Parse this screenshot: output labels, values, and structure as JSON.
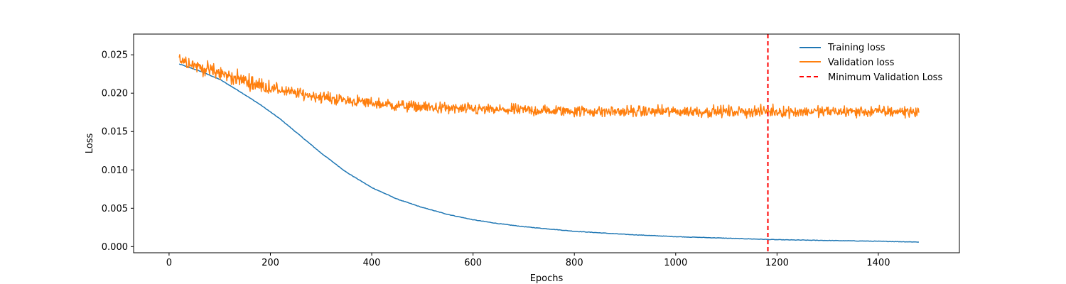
{
  "chart_data": {
    "type": "line",
    "title": "",
    "xlabel": "Epochs",
    "ylabel": "Loss",
    "xlim": [
      -70,
      1560
    ],
    "ylim": [
      -0.0008,
      0.0277
    ],
    "xticks": [
      0,
      200,
      400,
      600,
      800,
      1000,
      1200,
      1400
    ],
    "xtick_labels": [
      "0",
      "200",
      "400",
      "600",
      "800",
      "1000",
      "1200",
      "1400"
    ],
    "yticks": [
      0.0,
      0.005,
      0.01,
      0.015,
      0.02,
      0.025
    ],
    "ytick_labels": [
      "0.000",
      "0.005",
      "0.010",
      "0.015",
      "0.020",
      "0.025"
    ],
    "grid": false,
    "legend_position": "top-right",
    "series": [
      {
        "name": "Training loss",
        "color": "#1f77b4",
        "style": "solid",
        "x": [
          20,
          60,
          100,
          140,
          180,
          220,
          260,
          300,
          350,
          400,
          450,
          500,
          550,
          600,
          650,
          700,
          800,
          900,
          1000,
          1100,
          1200,
          1300,
          1400,
          1480
        ],
        "y": [
          0.0238,
          0.0229,
          0.0218,
          0.0202,
          0.0185,
          0.0166,
          0.0144,
          0.0122,
          0.0097,
          0.0077,
          0.0062,
          0.0051,
          0.0042,
          0.0035,
          0.003,
          0.0026,
          0.002,
          0.0016,
          0.0013,
          0.0011,
          0.0009,
          0.0008,
          0.0007,
          0.0006
        ]
      },
      {
        "name": "Validation loss",
        "color": "#ff7f0e",
        "style": "solid",
        "x": [
          20,
          40,
          60,
          80,
          100,
          120,
          140,
          160,
          180,
          200,
          240,
          280,
          320,
          360,
          400,
          450,
          500,
          550,
          600,
          650,
          700,
          750,
          800,
          850,
          900,
          950,
          1000,
          1050,
          1100,
          1150,
          1200,
          1250,
          1300,
          1350,
          1400,
          1450,
          1480
        ],
        "y": [
          0.0245,
          0.024,
          0.0234,
          0.023,
          0.0226,
          0.0222,
          0.0218,
          0.0214,
          0.021,
          0.0207,
          0.0201,
          0.0197,
          0.0193,
          0.019,
          0.0187,
          0.0184,
          0.0182,
          0.018,
          0.0179,
          0.0178,
          0.0178,
          0.0177,
          0.0177,
          0.0176,
          0.0176,
          0.0176,
          0.0176,
          0.0176,
          0.0176,
          0.0176,
          0.0176,
          0.0176,
          0.0176,
          0.0176,
          0.0176,
          0.0176,
          0.0176
        ],
        "noise_amplitude": 0.0011,
        "noise_range": [
          0.0152,
          0.0265
        ]
      },
      {
        "name": "Minimum Validation Loss",
        "color": "#ff0000",
        "style": "dashed",
        "vline_x": 1182
      }
    ]
  }
}
